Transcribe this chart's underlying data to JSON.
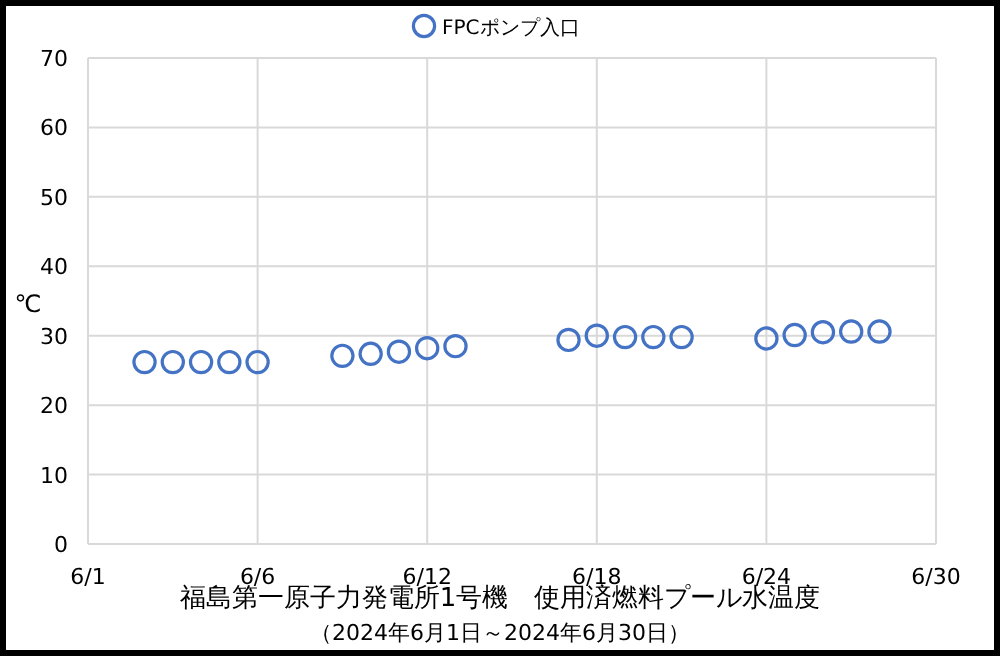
{
  "chart_data": {
    "type": "scatter",
    "title": "福島第一原子力発電所1号機　使用済燃料プール水温度",
    "subtitle": "（2024年6月1日～2024年6月30日）",
    "ylabel": "℃",
    "x": [
      "2024-06-02",
      "2024-06-03",
      "2024-06-04",
      "2024-06-05",
      "2024-06-06",
      "2024-06-09",
      "2024-06-10",
      "2024-06-11",
      "2024-06-12",
      "2024-06-13",
      "2024-06-17",
      "2024-06-18",
      "2024-06-19",
      "2024-06-20",
      "2024-06-21",
      "2024-06-24",
      "2024-06-25",
      "2024-06-26",
      "2024-06-27",
      "2024-06-28"
    ],
    "series": [
      {
        "name": "FPCポンプ入口",
        "color": "#4472c4",
        "values": [
          26.2,
          26.2,
          26.2,
          26.2,
          26.2,
          27.1,
          27.4,
          27.7,
          28.2,
          28.5,
          29.4,
          30.0,
          29.8,
          29.8,
          29.8,
          29.6,
          30.1,
          30.5,
          30.6,
          30.6
        ]
      }
    ],
    "xlim": [
      "2024-05-31",
      "2024-06-30"
    ],
    "xticks": [
      {
        "value": "2024-05-31",
        "label": "6/1"
      },
      {
        "value": "2024-06-06",
        "label": "6/6"
      },
      {
        "value": "2024-06-12",
        "label": "6/12"
      },
      {
        "value": "2024-06-18",
        "label": "6/18"
      },
      {
        "value": "2024-06-24",
        "label": "6/24"
      },
      {
        "value": "2024-06-30",
        "label": "6/30"
      }
    ],
    "ylim": [
      0,
      70
    ],
    "yticks": [
      0,
      10,
      20,
      30,
      40,
      50,
      60,
      70
    ],
    "grid": true,
    "legend": "top",
    "marker": "circle"
  }
}
